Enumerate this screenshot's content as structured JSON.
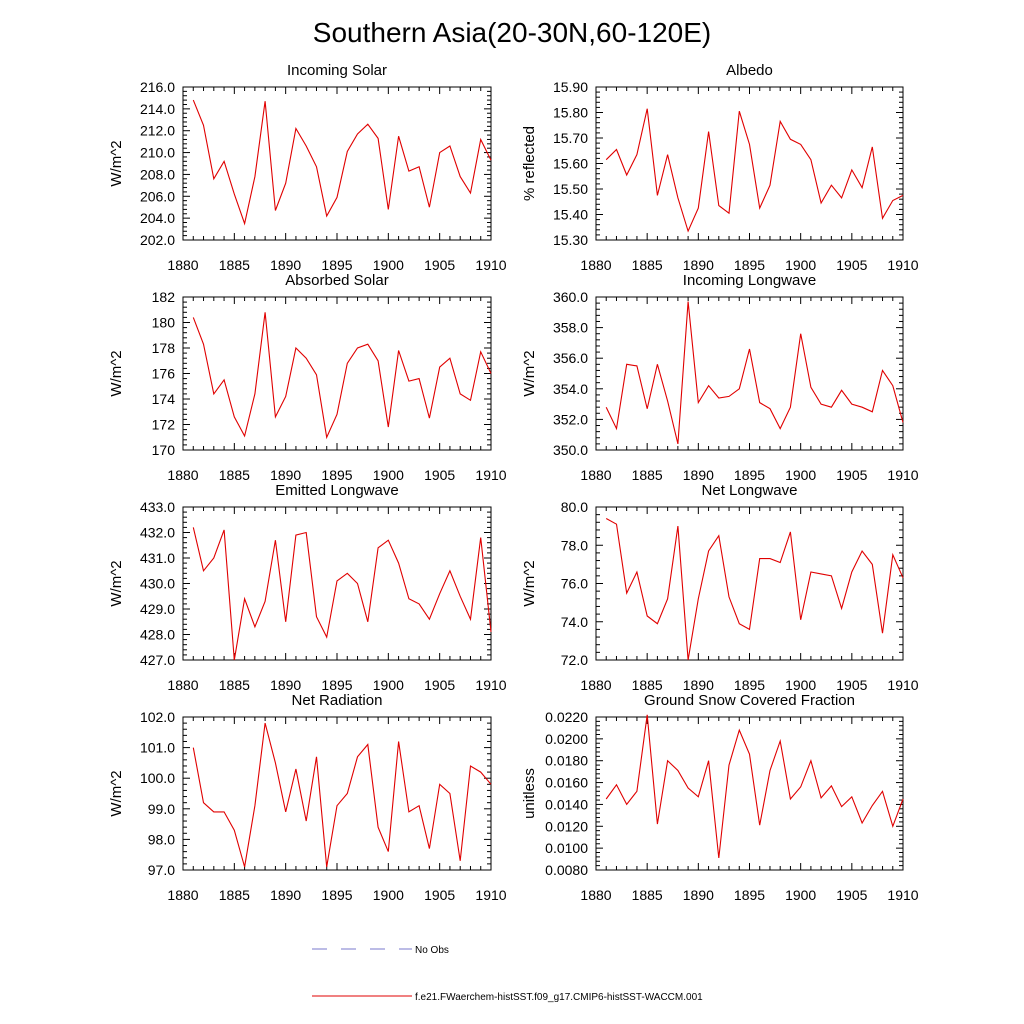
{
  "title": "Southern Asia(20-30N,60-120E)",
  "chart_data": [
    {
      "type": "line",
      "title": "Incoming Solar",
      "ylabel": "W/m^2",
      "xlim": [
        1880,
        1910
      ],
      "ylim": [
        202,
        216
      ],
      "yticks": [
        "202.0",
        "204.0",
        "206.0",
        "208.0",
        "210.0",
        "212.0",
        "214.0",
        "216.0"
      ],
      "xticks": [
        "1880",
        "1885",
        "1890",
        "1895",
        "1900",
        "1905",
        "1910"
      ],
      "series": [
        {
          "color": "#e00000",
          "x": [
            1881,
            1882,
            1883,
            1884,
            1885,
            1886,
            1887,
            1888,
            1889,
            1890,
            1891,
            1892,
            1893,
            1894,
            1895,
            1896,
            1897,
            1898,
            1899,
            1900,
            1901,
            1902,
            1903,
            1904,
            1905,
            1906,
            1907,
            1908,
            1909,
            1910
          ],
          "values": [
            214.8,
            212.5,
            207.6,
            209.2,
            206.2,
            203.5,
            207.8,
            214.7,
            204.7,
            207.2,
            212.2,
            210.6,
            208.7,
            204.2,
            205.9,
            210.1,
            211.7,
            212.6,
            211.3,
            204.8,
            211.5,
            208.3,
            208.7,
            205.0,
            210.0,
            210.6,
            207.8,
            206.3,
            211.2,
            209.3
          ]
        }
      ]
    },
    {
      "type": "line",
      "title": "Albedo",
      "ylabel": "% reflected",
      "xlim": [
        1880,
        1910
      ],
      "ylim": [
        15.3,
        15.9
      ],
      "yticks": [
        "15.30",
        "15.40",
        "15.50",
        "15.60",
        "15.70",
        "15.80",
        "15.90"
      ],
      "xticks": [
        "1880",
        "1885",
        "1890",
        "1895",
        "1900",
        "1905",
        "1910"
      ],
      "series": [
        {
          "color": "#e00000",
          "x": [
            1881,
            1882,
            1883,
            1884,
            1885,
            1886,
            1887,
            1888,
            1889,
            1890,
            1891,
            1892,
            1893,
            1894,
            1895,
            1896,
            1897,
            1898,
            1899,
            1900,
            1901,
            1902,
            1903,
            1904,
            1905,
            1906,
            1907,
            1908,
            1909,
            1910
          ],
          "values": [
            15.615,
            15.655,
            15.555,
            15.635,
            15.815,
            15.475,
            15.635,
            15.465,
            15.335,
            15.425,
            15.725,
            15.435,
            15.405,
            15.805,
            15.675,
            15.425,
            15.515,
            15.765,
            15.695,
            15.675,
            15.615,
            15.445,
            15.515,
            15.465,
            15.575,
            15.505,
            15.665,
            15.385,
            15.455,
            15.475
          ]
        }
      ]
    },
    {
      "type": "line",
      "title": "Absorbed Solar",
      "ylabel": "W/m^2",
      "xlim": [
        1880,
        1910
      ],
      "ylim": [
        170,
        182
      ],
      "yticks": [
        "170",
        "172",
        "174",
        "176",
        "178",
        "180",
        "182"
      ],
      "xticks": [
        "1880",
        "1885",
        "1890",
        "1895",
        "1900",
        "1905",
        "1910"
      ],
      "series": [
        {
          "color": "#e00000",
          "x": [
            1881,
            1882,
            1883,
            1884,
            1885,
            1886,
            1887,
            1888,
            1889,
            1890,
            1891,
            1892,
            1893,
            1894,
            1895,
            1896,
            1897,
            1898,
            1899,
            1900,
            1901,
            1902,
            1903,
            1904,
            1905,
            1906,
            1907,
            1908,
            1909,
            1910
          ],
          "values": [
            180.4,
            178.3,
            174.4,
            175.5,
            172.6,
            171.1,
            174.4,
            180.8,
            172.6,
            174.2,
            178.0,
            177.2,
            175.9,
            171.0,
            172.8,
            176.8,
            178.0,
            178.3,
            177.0,
            171.8,
            177.8,
            175.4,
            175.6,
            172.5,
            176.5,
            177.2,
            174.4,
            173.9,
            177.7,
            176.0
          ]
        }
      ]
    },
    {
      "type": "line",
      "title": "Incoming Longwave",
      "ylabel": "W/m^2",
      "xlim": [
        1880,
        1910
      ],
      "ylim": [
        350,
        360
      ],
      "yticks": [
        "350.0",
        "352.0",
        "354.0",
        "356.0",
        "358.0",
        "360.0"
      ],
      "xticks": [
        "1880",
        "1885",
        "1890",
        "1895",
        "1900",
        "1905",
        "1910"
      ],
      "series": [
        {
          "color": "#e00000",
          "x": [
            1881,
            1882,
            1883,
            1884,
            1885,
            1886,
            1887,
            1888,
            1889,
            1890,
            1891,
            1892,
            1893,
            1894,
            1895,
            1896,
            1897,
            1898,
            1899,
            1900,
            1901,
            1902,
            1903,
            1904,
            1905,
            1906,
            1907,
            1908,
            1909,
            1910
          ],
          "values": [
            352.8,
            351.4,
            355.6,
            355.5,
            352.7,
            355.6,
            353.2,
            350.4,
            359.7,
            353.1,
            354.2,
            353.4,
            353.5,
            354.0,
            356.6,
            353.1,
            352.7,
            351.4,
            352.8,
            357.6,
            354.1,
            353.0,
            352.8,
            353.9,
            353.0,
            352.8,
            352.5,
            355.2,
            354.2,
            351.8
          ]
        }
      ]
    },
    {
      "type": "line",
      "title": "Emitted Longwave",
      "ylabel": "W/m^2",
      "xlim": [
        1880,
        1910
      ],
      "ylim": [
        427,
        433
      ],
      "yticks": [
        "427.0",
        "428.0",
        "429.0",
        "430.0",
        "431.0",
        "432.0",
        "433.0"
      ],
      "xticks": [
        "1880",
        "1885",
        "1890",
        "1895",
        "1900",
        "1905",
        "1910"
      ],
      "series": [
        {
          "color": "#e00000",
          "x": [
            1881,
            1882,
            1883,
            1884,
            1885,
            1886,
            1887,
            1888,
            1889,
            1890,
            1891,
            1892,
            1893,
            1894,
            1895,
            1896,
            1897,
            1898,
            1899,
            1900,
            1901,
            1902,
            1903,
            1904,
            1905,
            1906,
            1907,
            1908,
            1909,
            1910
          ],
          "values": [
            432.2,
            430.5,
            431.0,
            432.1,
            427.0,
            429.4,
            428.3,
            429.3,
            431.7,
            428.5,
            431.9,
            432.0,
            428.7,
            427.9,
            430.1,
            430.4,
            430.0,
            428.5,
            431.4,
            431.7,
            430.8,
            429.4,
            429.2,
            428.6,
            429.6,
            430.5,
            429.5,
            428.6,
            431.8,
            428.1
          ]
        }
      ]
    },
    {
      "type": "line",
      "title": "Net Longwave",
      "ylabel": "W/m^2",
      "xlim": [
        1880,
        1910
      ],
      "ylim": [
        72,
        80
      ],
      "yticks": [
        "72.0",
        "74.0",
        "76.0",
        "78.0",
        "80.0"
      ],
      "xticks": [
        "1880",
        "1885",
        "1890",
        "1895",
        "1900",
        "1905",
        "1910"
      ],
      "series": [
        {
          "color": "#e00000",
          "x": [
            1881,
            1882,
            1883,
            1884,
            1885,
            1886,
            1887,
            1888,
            1889,
            1890,
            1891,
            1892,
            1893,
            1894,
            1895,
            1896,
            1897,
            1898,
            1899,
            1900,
            1901,
            1902,
            1903,
            1904,
            1905,
            1906,
            1907,
            1908,
            1909,
            1910
          ],
          "values": [
            79.4,
            79.1,
            75.5,
            76.6,
            74.3,
            73.9,
            75.2,
            79.0,
            72.0,
            75.2,
            77.7,
            78.5,
            75.3,
            73.9,
            73.6,
            77.3,
            77.3,
            77.1,
            78.7,
            74.1,
            76.6,
            76.5,
            76.4,
            74.7,
            76.6,
            77.7,
            77.0,
            73.4,
            77.5,
            76.3
          ]
        }
      ]
    },
    {
      "type": "line",
      "title": "Net Radiation",
      "ylabel": "W/m^2",
      "xlim": [
        1880,
        1910
      ],
      "ylim": [
        97,
        102
      ],
      "yticks": [
        "97.0",
        "98.0",
        "99.0",
        "100.0",
        "101.0",
        "102.0"
      ],
      "xticks": [
        "1880",
        "1885",
        "1890",
        "1895",
        "1900",
        "1905",
        "1910"
      ],
      "series": [
        {
          "color": "#e00000",
          "x": [
            1881,
            1882,
            1883,
            1884,
            1885,
            1886,
            1887,
            1888,
            1889,
            1890,
            1891,
            1892,
            1893,
            1894,
            1895,
            1896,
            1897,
            1898,
            1899,
            1900,
            1901,
            1902,
            1903,
            1904,
            1905,
            1906,
            1907,
            1908,
            1909,
            1910
          ],
          "values": [
            101.0,
            99.2,
            98.9,
            98.9,
            98.3,
            97.1,
            99.1,
            101.8,
            100.5,
            98.9,
            100.3,
            98.6,
            100.7,
            97.1,
            99.1,
            99.5,
            100.7,
            101.1,
            98.4,
            97.6,
            101.2,
            98.9,
            99.1,
            97.7,
            99.8,
            99.5,
            97.3,
            100.4,
            100.2,
            99.8
          ]
        }
      ]
    },
    {
      "type": "line",
      "title": "Ground Snow Covered Fraction",
      "ylabel": "unitless",
      "xlim": [
        1880,
        1910
      ],
      "ylim": [
        0.008,
        0.022
      ],
      "yticks": [
        "0.0080",
        "0.0100",
        "0.0120",
        "0.0140",
        "0.0160",
        "0.0180",
        "0.0200",
        "0.0220"
      ],
      "xticks": [
        "1880",
        "1885",
        "1890",
        "1895",
        "1900",
        "1905",
        "1910"
      ],
      "series": [
        {
          "color": "#e00000",
          "x": [
            1881,
            1882,
            1883,
            1884,
            1885,
            1886,
            1887,
            1888,
            1889,
            1890,
            1891,
            1892,
            1893,
            1894,
            1895,
            1896,
            1897,
            1898,
            1899,
            1900,
            1901,
            1902,
            1903,
            1904,
            1905,
            1906,
            1907,
            1908,
            1909,
            1910
          ],
          "values": [
            0.0145,
            0.0158,
            0.014,
            0.0152,
            0.0222,
            0.0122,
            0.018,
            0.0171,
            0.0155,
            0.0147,
            0.018,
            0.0091,
            0.0176,
            0.0208,
            0.0186,
            0.0121,
            0.0171,
            0.0198,
            0.0145,
            0.0156,
            0.018,
            0.0146,
            0.0157,
            0.0138,
            0.0147,
            0.0123,
            0.0139,
            0.0152,
            0.012,
            0.0145
          ]
        }
      ]
    }
  ],
  "legend": {
    "items": [
      {
        "label": "No Obs",
        "color": "#7a7acc",
        "style": "dashed"
      },
      {
        "label": "f.e21.FWaerchem-histSST.f09_g17.CMIP6-histSST-WACCM.001",
        "color": "#e00000",
        "style": "solid"
      }
    ]
  }
}
